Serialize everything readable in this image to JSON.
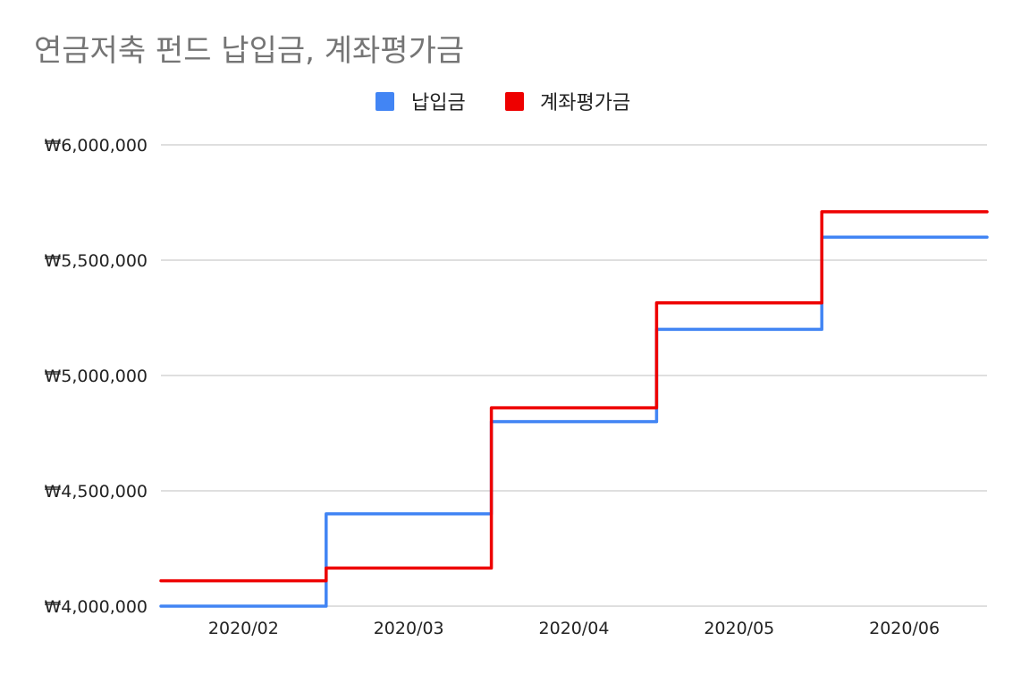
{
  "chart_data": {
    "type": "line",
    "step": true,
    "title": "연금저축 펀드 납입금, 계좌평가금",
    "xlabel": "",
    "ylabel": "",
    "ylim": [
      4000000,
      6000000
    ],
    "y_ticks": [
      {
        "value": 4000000,
        "label": "₩4,000,000"
      },
      {
        "value": 4500000,
        "label": "₩4,500,000"
      },
      {
        "value": 5000000,
        "label": "₩5,000,000"
      },
      {
        "value": 5500000,
        "label": "₩5,500,000"
      },
      {
        "value": 6000000,
        "label": "₩6,000,000"
      }
    ],
    "categories": [
      "2020/02",
      "2020/03",
      "2020/04",
      "2020/05",
      "2020/06"
    ],
    "grid": true,
    "legend": "top-center",
    "series": [
      {
        "name": "납입금",
        "color": "#4285f4",
        "values": [
          4000000,
          4400000,
          4800000,
          5200000,
          5600000
        ]
      },
      {
        "name": "계좌평가금",
        "color": "#ee0000",
        "values": [
          4110000,
          4165000,
          4860000,
          5315000,
          5710000
        ]
      }
    ]
  }
}
